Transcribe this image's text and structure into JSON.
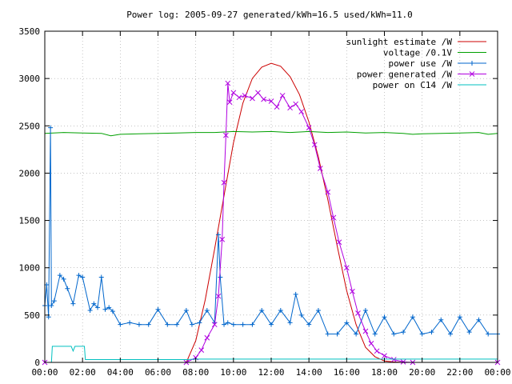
{
  "chart_data": {
    "type": "line",
    "title": "Power log: 2005-09-27 generated/kWh=16.5 used/kWh=11.0",
    "xlabel": "",
    "ylabel": "",
    "xlim": [
      0,
      24
    ],
    "ylim": [
      0,
      3500
    ],
    "x_ticks": [
      "00:00",
      "02:00",
      "04:00",
      "06:00",
      "08:00",
      "10:00",
      "12:00",
      "14:00",
      "16:00",
      "18:00",
      "20:00",
      "22:00",
      "00:00"
    ],
    "y_ticks": [
      0,
      500,
      1000,
      1500,
      2000,
      2500,
      3000,
      3500
    ],
    "grid": true,
    "legend_position": "top-right",
    "series": [
      {
        "name": "sunlight estimate /W",
        "color": "#cc0000",
        "marker": "none",
        "x": [
          0,
          7.5,
          8.0,
          8.5,
          9.0,
          9.5,
          10.0,
          10.5,
          11.0,
          11.5,
          12.0,
          12.5,
          13.0,
          13.5,
          14.0,
          14.5,
          15.0,
          15.5,
          16.0,
          16.5,
          17.0,
          17.5,
          18.0,
          18.5,
          19.0,
          24
        ],
        "y": [
          0,
          0,
          230,
          660,
          1200,
          1760,
          2320,
          2740,
          3000,
          3120,
          3160,
          3130,
          3020,
          2830,
          2540,
          2170,
          1720,
          1230,
          760,
          400,
          160,
          60,
          15,
          5,
          0,
          0
        ]
      },
      {
        "name": "voltage /0.1V",
        "color": "#00a000",
        "marker": "none",
        "x": [
          0,
          1,
          2,
          3,
          3.5,
          4,
          5,
          6,
          7,
          8,
          9,
          10,
          11,
          12,
          13,
          14,
          15,
          16,
          17,
          18,
          19,
          19.5,
          20,
          21,
          22,
          23,
          23.5,
          24
        ],
        "y": [
          2420,
          2430,
          2425,
          2420,
          2395,
          2410,
          2415,
          2420,
          2425,
          2430,
          2430,
          2440,
          2435,
          2440,
          2430,
          2440,
          2430,
          2435,
          2425,
          2430,
          2420,
          2410,
          2415,
          2420,
          2425,
          2430,
          2410,
          2420
        ]
      },
      {
        "name": "power use /W",
        "color": "#0066cc",
        "marker": "plus",
        "x": [
          0.0,
          0.1,
          0.2,
          0.3,
          0.35,
          0.5,
          0.8,
          1.0,
          1.2,
          1.5,
          1.8,
          2.0,
          2.4,
          2.6,
          2.8,
          3.0,
          3.2,
          3.4,
          3.6,
          4.0,
          4.5,
          5.0,
          5.5,
          6.0,
          6.5,
          7.0,
          7.5,
          7.8,
          8.2,
          8.6,
          9.0,
          9.2,
          9.3,
          9.5,
          9.7,
          10.0,
          10.5,
          11.0,
          11.5,
          12.0,
          12.5,
          13.0,
          13.3,
          13.6,
          14.0,
          14.5,
          15.0,
          15.5,
          16.0,
          16.5,
          17.0,
          17.5,
          18.0,
          18.5,
          19.0,
          19.5,
          20.0,
          20.5,
          21.0,
          21.5,
          22.0,
          22.5,
          23.0,
          23.5,
          24.0
        ],
        "y": [
          600,
          820,
          480,
          2480,
          600,
          650,
          920,
          880,
          780,
          620,
          920,
          900,
          550,
          620,
          580,
          900,
          560,
          580,
          540,
          400,
          420,
          400,
          400,
          560,
          400,
          400,
          550,
          400,
          420,
          550,
          420,
          1350,
          900,
          400,
          420,
          400,
          400,
          400,
          550,
          400,
          550,
          420,
          720,
          500,
          400,
          550,
          300,
          300,
          420,
          300,
          550,
          300,
          480,
          300,
          320,
          480,
          300,
          320,
          450,
          300,
          480,
          320,
          450,
          300,
          300
        ]
      },
      {
        "name": "power generated /W",
        "color": "#b000e0",
        "marker": "x",
        "x": [
          0,
          7.5,
          8.0,
          8.3,
          8.6,
          9.0,
          9.2,
          9.4,
          9.5,
          9.6,
          9.7,
          9.8,
          10.0,
          10.3,
          10.6,
          11.0,
          11.3,
          11.6,
          12.0,
          12.3,
          12.6,
          13.0,
          13.3,
          13.6,
          14.0,
          14.3,
          14.6,
          15.0,
          15.3,
          15.6,
          16.0,
          16.3,
          16.6,
          17.0,
          17.3,
          17.6,
          18.0,
          18.5,
          19.0,
          19.5,
          24
        ],
        "y": [
          0,
          0,
          50,
          130,
          260,
          400,
          700,
          1300,
          1900,
          2400,
          2950,
          2750,
          2850,
          2800,
          2820,
          2790,
          2850,
          2780,
          2760,
          2700,
          2820,
          2690,
          2730,
          2650,
          2480,
          2300,
          2050,
          1800,
          1530,
          1270,
          1000,
          750,
          520,
          330,
          200,
          120,
          70,
          30,
          5,
          0,
          0
        ]
      },
      {
        "name": "power on C14 /W",
        "color": "#00c0c0",
        "marker": "none",
        "x": [
          0,
          0.35,
          0.4,
          1.4,
          1.5,
          1.6,
          2.0,
          2.1,
          2.15,
          7.5,
          8.0,
          9.0,
          10.0,
          12.0,
          14.0,
          16.0,
          18.0,
          20.0,
          22.0,
          24.0
        ],
        "y": [
          0,
          0,
          170,
          170,
          120,
          170,
          170,
          170,
          30,
          30,
          35,
          35,
          35,
          35,
          35,
          35,
          35,
          35,
          35,
          35
        ]
      }
    ]
  }
}
